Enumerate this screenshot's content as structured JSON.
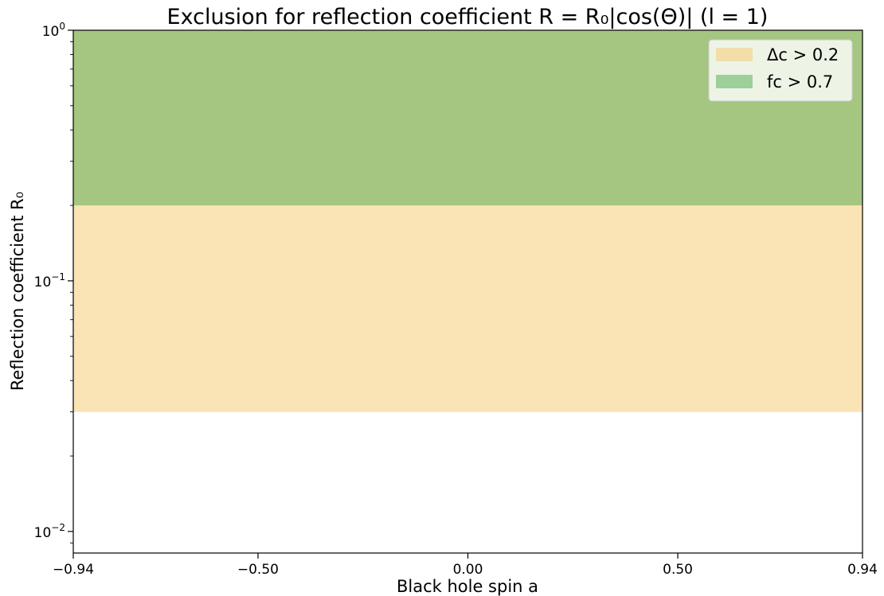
{
  "chart_data": {
    "type": "area",
    "title": "Exclusion for reflection coefficient R = R₀|cos(Θ)| (l = 1)",
    "xlabel": "Black hole spin a",
    "ylabel": "Reflection coefficient R₀",
    "xlim": [
      -0.94,
      0.94
    ],
    "ylim": [
      0.0082,
      1.0
    ],
    "yscale": "log",
    "grid": false,
    "legend_position": "top-right",
    "x_ticks": [
      {
        "value": -0.94,
        "label": "−0.94"
      },
      {
        "value": -0.5,
        "label": "−0.50"
      },
      {
        "value": 0.0,
        "label": "0.00"
      },
      {
        "value": 0.5,
        "label": "0.50"
      },
      {
        "value": 0.94,
        "label": "0.94"
      }
    ],
    "y_ticks": [
      {
        "value": 1.0,
        "base": "10",
        "exp": "0"
      },
      {
        "value": 0.1,
        "base": "10",
        "exp": "−1"
      },
      {
        "value": 0.01,
        "base": "10",
        "exp": "−2"
      }
    ],
    "series": [
      {
        "name": "Δc > 0.2",
        "color": "#f5c76b",
        "opacity": 0.5,
        "x": [
          -0.94,
          0.94
        ],
        "y_lower": 0.03,
        "y_upper": 1.0
      },
      {
        "name": "fc > 0.7",
        "color": "#4daa4d",
        "opacity": 0.5,
        "x": [
          -0.94,
          0.94
        ],
        "y_lower": 0.2,
        "y_upper": 1.0
      }
    ]
  }
}
